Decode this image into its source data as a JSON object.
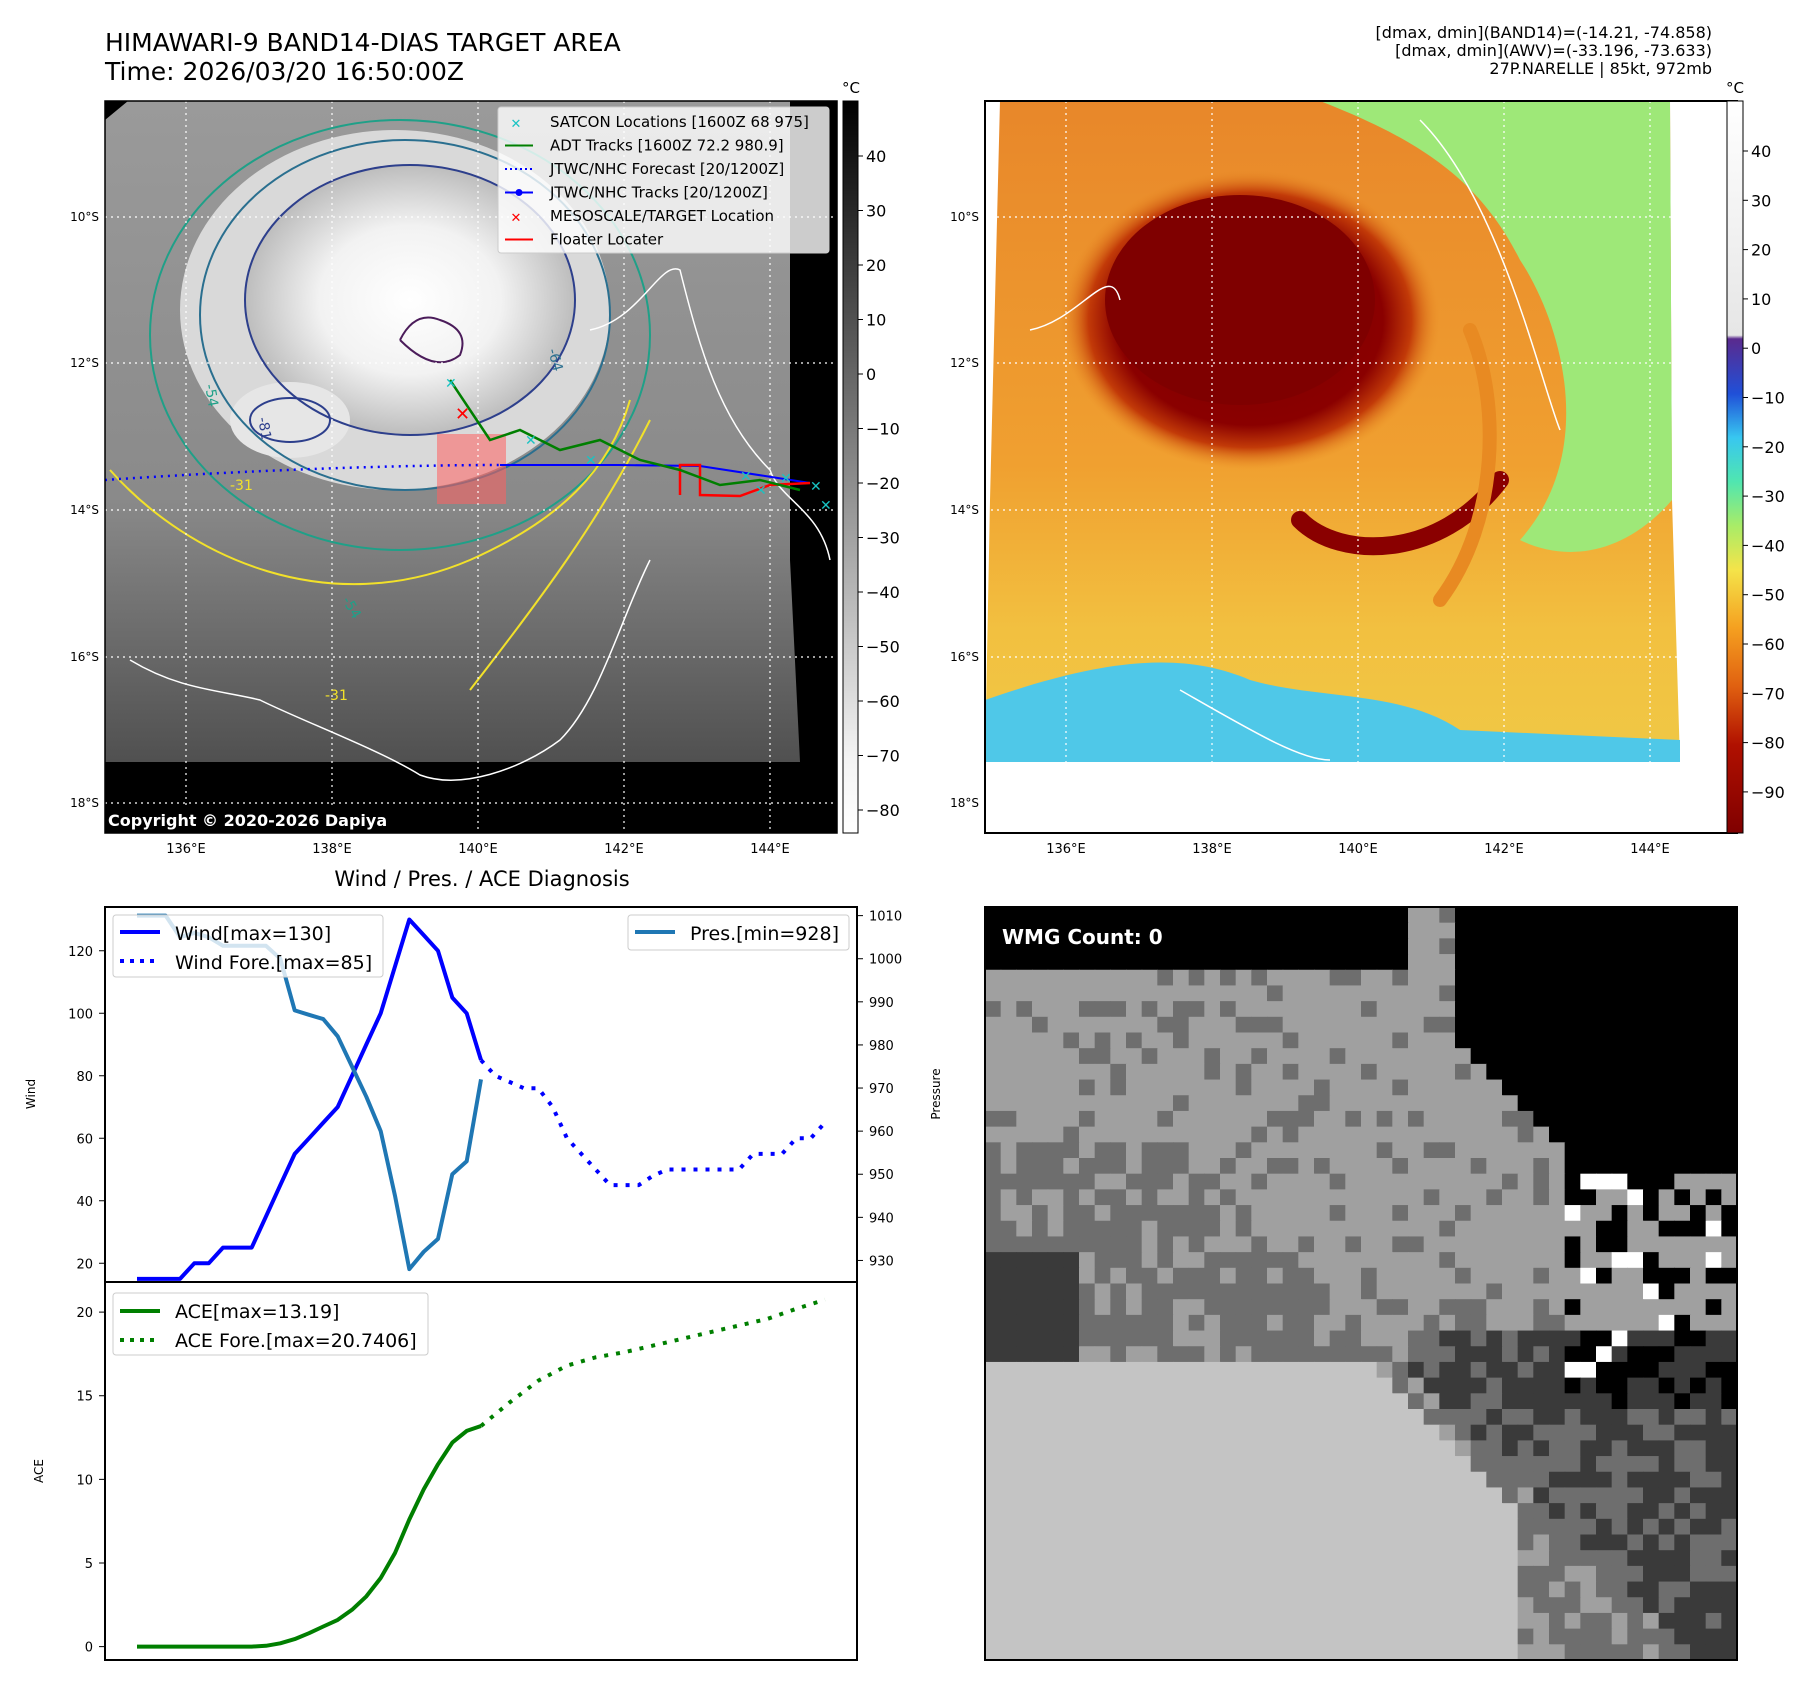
{
  "header": {
    "title_line1": "HIMAWARI-9 BAND14-DIAS TARGET AREA",
    "title_line2": "Time: 2026/03/20 16:50:00Z",
    "info_line1": "[dmax, dmin](BAND14)=(-14.21, -74.858)",
    "info_line2": "[dmax, dmin](AWV)=(-33.196, -73.633)",
    "info_line3": "27P.NARELLE | 85kt, 972mb"
  },
  "maps": {
    "lon_ticks": [
      "136°E",
      "138°E",
      "140°E",
      "142°E",
      "144°E"
    ],
    "lat_ticks": [
      "10°S",
      "12°S",
      "14°S",
      "16°S",
      "18°S"
    ],
    "copyright": "Copyright © 2020-2026 Dapiya",
    "unit": "°C",
    "ir_colorbar_ticks": [
      "40",
      "30",
      "20",
      "10",
      "0",
      "−10",
      "−20",
      "−30",
      "−40",
      "−50",
      "−60",
      "−70",
      "−80"
    ],
    "awv_colorbar_ticks": [
      "40",
      "30",
      "20",
      "10",
      "0",
      "−10",
      "−20",
      "−30",
      "−40",
      "−50",
      "−60",
      "−70",
      "−80",
      "−90"
    ],
    "contour_labels": [
      "-64",
      "-54",
      "-31",
      "-81",
      "-54",
      "-31"
    ],
    "legend": [
      {
        "label": "SATCON Locations [1600Z 68 975]",
        "color": "#19c3c3",
        "style": "x"
      },
      {
        "label": "ADT Tracks [1600Z 72.2 980.9]",
        "color": "#007f00",
        "style": "line"
      },
      {
        "label": "JTWC/NHC Forecast [20/1200Z]",
        "color": "#0000ff",
        "style": "dotted"
      },
      {
        "label": "JTWC/NHC Tracks [20/1200Z]",
        "color": "#0000ff",
        "style": "line-dot"
      },
      {
        "label": "MESOSCALE/TARGET Location",
        "color": "#ff0000",
        "style": "x"
      },
      {
        "label": "Floater Locater",
        "color": "#ff0000",
        "style": "line"
      }
    ]
  },
  "wmg": {
    "label": "WMG Count: 0"
  },
  "chart_data": [
    {
      "type": "line",
      "title": "Wind / Pres. / ACE Diagnosis",
      "ylabel": "Wind",
      "y2label": "Pressure",
      "ylim": [
        14,
        134
      ],
      "y2lim": [
        925,
        1012
      ],
      "yticks": [
        "20",
        "40",
        "60",
        "80",
        "100",
        "120"
      ],
      "y2ticks": [
        "930",
        "940",
        "950",
        "960",
        "970",
        "980",
        "990",
        "1000",
        "1010"
      ],
      "series": [
        {
          "name": "Wind[max=130]",
          "axis": "left",
          "color": "#0000ff",
          "style": "solid",
          "values": [
            [
              0,
              15
            ],
            [
              1,
              15
            ],
            [
              2,
              15
            ],
            [
              3,
              15
            ],
            [
              4,
              20
            ],
            [
              5,
              20
            ],
            [
              6,
              25
            ],
            [
              7,
              25
            ],
            [
              8,
              25
            ],
            [
              9,
              35
            ],
            [
              10,
              45
            ],
            [
              11,
              55
            ],
            [
              12,
              60
            ],
            [
              13,
              65
            ],
            [
              14,
              70
            ],
            [
              15,
              80
            ],
            [
              16,
              90
            ],
            [
              17,
              100
            ],
            [
              18,
              115
            ],
            [
              19,
              130
            ],
            [
              20,
              125
            ],
            [
              21,
              120
            ],
            [
              22,
              105
            ],
            [
              23,
              100
            ],
            [
              24,
              85
            ]
          ]
        },
        {
          "name": "Wind Fore.[max=85]",
          "axis": "left",
          "color": "#0000ff",
          "style": "dotted",
          "values": [
            [
              24,
              85
            ],
            [
              25,
              80
            ],
            [
              26,
              78
            ],
            [
              27,
              76
            ],
            [
              28,
              76
            ],
            [
              29,
              70
            ],
            [
              30,
              60
            ],
            [
              31,
              55
            ],
            [
              32,
              50
            ],
            [
              33,
              45
            ],
            [
              34,
              45
            ],
            [
              35,
              45
            ],
            [
              36,
              48
            ],
            [
              37,
              50
            ],
            [
              38,
              50
            ],
            [
              39,
              50
            ],
            [
              40,
              50
            ],
            [
              41,
              50
            ],
            [
              42,
              50
            ],
            [
              43,
              55
            ],
            [
              44,
              55
            ],
            [
              45,
              55
            ],
            [
              46,
              60
            ],
            [
              47,
              60
            ],
            [
              48,
              65
            ]
          ]
        },
        {
          "name": "Pres.[min=928]",
          "axis": "right",
          "color": "#1f77b4",
          "style": "solid",
          "values": [
            [
              0,
              1010
            ],
            [
              1,
              1010
            ],
            [
              2,
              1010
            ],
            [
              3,
              1005
            ],
            [
              4,
              1006
            ],
            [
              5,
              1005
            ],
            [
              6,
              1003
            ],
            [
              7,
              1003
            ],
            [
              8,
              1003
            ],
            [
              9,
              1003
            ],
            [
              10,
              1000
            ],
            [
              11,
              988
            ],
            [
              12,
              987
            ],
            [
              13,
              986
            ],
            [
              14,
              982
            ],
            [
              15,
              975
            ],
            [
              16,
              968
            ],
            [
              17,
              960
            ],
            [
              18,
              945
            ],
            [
              19,
              928
            ],
            [
              20,
              932
            ],
            [
              21,
              935
            ],
            [
              22,
              950
            ],
            [
              23,
              953
            ],
            [
              24,
              972
            ]
          ]
        }
      ]
    },
    {
      "type": "line",
      "ylabel": "ACE",
      "ylim": [
        -0.8,
        21.8
      ],
      "yticks": [
        "0",
        "5",
        "10",
        "15",
        "20"
      ],
      "series": [
        {
          "name": "ACE[max=13.19]",
          "color": "#007f00",
          "style": "solid",
          "values": [
            [
              0,
              0
            ],
            [
              1,
              0
            ],
            [
              2,
              0
            ],
            [
              3,
              0
            ],
            [
              4,
              0
            ],
            [
              5,
              0
            ],
            [
              6,
              0
            ],
            [
              7,
              0
            ],
            [
              8,
              0
            ],
            [
              9,
              0.05
            ],
            [
              10,
              0.2
            ],
            [
              11,
              0.45
            ],
            [
              12,
              0.8
            ],
            [
              13,
              1.2
            ],
            [
              14,
              1.6
            ],
            [
              15,
              2.2
            ],
            [
              16,
              3.0
            ],
            [
              17,
              4.1
            ],
            [
              18,
              5.6
            ],
            [
              19,
              7.6
            ],
            [
              20,
              9.4
            ],
            [
              21,
              10.9
            ],
            [
              22,
              12.2
            ],
            [
              23,
              12.9
            ],
            [
              24,
              13.19
            ]
          ]
        },
        {
          "name": "ACE Fore.[max=20.7406]",
          "color": "#007f00",
          "style": "dotted",
          "values": [
            [
              24,
              13.19
            ],
            [
              26,
              14.6
            ],
            [
              28,
              15.9
            ],
            [
              30,
              16.8
            ],
            [
              32,
              17.3
            ],
            [
              34,
              17.6
            ],
            [
              36,
              18.0
            ],
            [
              38,
              18.4
            ],
            [
              40,
              18.8
            ],
            [
              42,
              19.2
            ],
            [
              44,
              19.6
            ],
            [
              46,
              20.2
            ],
            [
              48,
              20.74
            ]
          ]
        }
      ]
    }
  ]
}
